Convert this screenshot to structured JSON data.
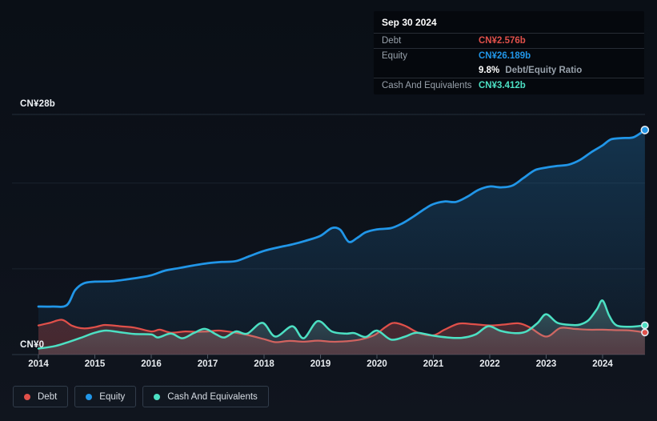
{
  "tooltip": {
    "date": "Sep 30 2024",
    "debt_label": "Debt",
    "debt_value": "CN¥2.576b",
    "equity_label": "Equity",
    "equity_value": "CN¥26.189b",
    "ratio_value": "9.8%",
    "ratio_label": "Debt/Equity Ratio",
    "cash_label": "Cash And Equivalents",
    "cash_value": "CN¥3.412b"
  },
  "legend": {
    "items": [
      {
        "key": "debt",
        "label": "Debt"
      },
      {
        "key": "equity",
        "label": "Equity"
      },
      {
        "key": "cash",
        "label": "Cash And Equivalents"
      }
    ]
  },
  "colors": {
    "debt": "#e0504a",
    "equity": "#2196e8",
    "cash": "#4ce0c3",
    "equity_fill_top": "rgba(38,132,199,0.30)",
    "equity_fill_bottom": "rgba(38,132,199,0.05)",
    "debt_fill": "rgba(224,80,74,0.26)",
    "cash_fill_top": "rgba(125,222,204,0.30)",
    "cash_fill_bottom": "rgba(150,168,184,0.15)",
    "marker_stroke": "#e2ebf3",
    "grid_major": "#232d39",
    "grid_minor": "#1a222d",
    "axis_line": "#2e3845",
    "tick": "#4c5663"
  },
  "chart_data": {
    "type": "area",
    "unit": "CN¥ billions",
    "last_point_date": "Sep 30 2024",
    "y_axis": {
      "min": 0,
      "max": 28,
      "top_label": "CN¥28b",
      "bottom_label": "CN¥0",
      "gridlines": [
        28,
        20,
        10,
        0
      ]
    },
    "x_axis": {
      "ticks": [
        "2014",
        "2015",
        "2016",
        "2017",
        "2018",
        "2019",
        "2020",
        "2021",
        "2022",
        "2023",
        "2024"
      ]
    },
    "series": [
      {
        "key": "equity",
        "name": "Equity",
        "points": [
          [
            2014.0,
            5.6
          ],
          [
            2014.25,
            5.6
          ],
          [
            2014.5,
            5.75
          ],
          [
            2014.65,
            7.5
          ],
          [
            2014.8,
            8.3
          ],
          [
            2015.0,
            8.5
          ],
          [
            2015.3,
            8.55
          ],
          [
            2015.6,
            8.8
          ],
          [
            2015.8,
            9.0
          ],
          [
            2016.0,
            9.25
          ],
          [
            2016.25,
            9.8
          ],
          [
            2016.5,
            10.1
          ],
          [
            2016.75,
            10.4
          ],
          [
            2017.0,
            10.65
          ],
          [
            2017.25,
            10.8
          ],
          [
            2017.5,
            10.9
          ],
          [
            2017.75,
            11.5
          ],
          [
            2018.0,
            12.1
          ],
          [
            2018.25,
            12.5
          ],
          [
            2018.5,
            12.85
          ],
          [
            2018.75,
            13.3
          ],
          [
            2019.0,
            13.85
          ],
          [
            2019.2,
            14.75
          ],
          [
            2019.35,
            14.55
          ],
          [
            2019.5,
            13.15
          ],
          [
            2019.65,
            13.6
          ],
          [
            2019.8,
            14.25
          ],
          [
            2020.0,
            14.6
          ],
          [
            2020.25,
            14.75
          ],
          [
            2020.45,
            15.3
          ],
          [
            2020.65,
            16.1
          ],
          [
            2020.85,
            17.0
          ],
          [
            2021.0,
            17.55
          ],
          [
            2021.2,
            17.85
          ],
          [
            2021.4,
            17.8
          ],
          [
            2021.6,
            18.4
          ],
          [
            2021.8,
            19.2
          ],
          [
            2022.0,
            19.6
          ],
          [
            2022.2,
            19.5
          ],
          [
            2022.4,
            19.7
          ],
          [
            2022.6,
            20.6
          ],
          [
            2022.8,
            21.5
          ],
          [
            2023.0,
            21.8
          ],
          [
            2023.2,
            22.0
          ],
          [
            2023.4,
            22.15
          ],
          [
            2023.6,
            22.7
          ],
          [
            2023.8,
            23.6
          ],
          [
            2024.0,
            24.4
          ],
          [
            2024.15,
            25.1
          ],
          [
            2024.35,
            25.25
          ],
          [
            2024.55,
            25.35
          ],
          [
            2024.75,
            26.189
          ]
        ]
      },
      {
        "key": "debt",
        "name": "Debt",
        "points": [
          [
            2014.0,
            3.4
          ],
          [
            2014.2,
            3.7
          ],
          [
            2014.42,
            4.05
          ],
          [
            2014.6,
            3.35
          ],
          [
            2014.8,
            3.05
          ],
          [
            2015.0,
            3.2
          ],
          [
            2015.18,
            3.45
          ],
          [
            2015.45,
            3.3
          ],
          [
            2015.7,
            3.15
          ],
          [
            2016.0,
            2.7
          ],
          [
            2016.15,
            2.9
          ],
          [
            2016.35,
            2.55
          ],
          [
            2016.6,
            2.7
          ],
          [
            2016.8,
            2.65
          ],
          [
            2017.0,
            2.7
          ],
          [
            2017.2,
            2.8
          ],
          [
            2017.45,
            2.6
          ],
          [
            2017.7,
            2.3
          ],
          [
            2018.0,
            1.8
          ],
          [
            2018.2,
            1.45
          ],
          [
            2018.45,
            1.6
          ],
          [
            2018.7,
            1.5
          ],
          [
            2018.95,
            1.62
          ],
          [
            2019.2,
            1.5
          ],
          [
            2019.45,
            1.55
          ],
          [
            2019.7,
            1.75
          ],
          [
            2019.95,
            2.25
          ],
          [
            2020.15,
            3.2
          ],
          [
            2020.3,
            3.7
          ],
          [
            2020.5,
            3.35
          ],
          [
            2020.75,
            2.5
          ],
          [
            2021.0,
            2.25
          ],
          [
            2021.2,
            2.9
          ],
          [
            2021.45,
            3.6
          ],
          [
            2021.7,
            3.55
          ],
          [
            2022.0,
            3.4
          ],
          [
            2022.25,
            3.5
          ],
          [
            2022.5,
            3.65
          ],
          [
            2022.7,
            3.2
          ],
          [
            2023.0,
            2.1
          ],
          [
            2023.25,
            3.1
          ],
          [
            2023.5,
            3.0
          ],
          [
            2023.75,
            2.9
          ],
          [
            2024.0,
            2.9
          ],
          [
            2024.25,
            2.85
          ],
          [
            2024.5,
            2.8
          ],
          [
            2024.75,
            2.576
          ]
        ]
      },
      {
        "key": "cash",
        "name": "Cash And Equivalents",
        "points": [
          [
            2014.0,
            0.7
          ],
          [
            2014.3,
            1.0
          ],
          [
            2014.55,
            1.5
          ],
          [
            2014.75,
            1.95
          ],
          [
            2015.0,
            2.55
          ],
          [
            2015.2,
            2.8
          ],
          [
            2015.45,
            2.6
          ],
          [
            2015.7,
            2.4
          ],
          [
            2016.0,
            2.35
          ],
          [
            2016.12,
            2.0
          ],
          [
            2016.35,
            2.45
          ],
          [
            2016.55,
            1.9
          ],
          [
            2016.75,
            2.5
          ],
          [
            2016.95,
            3.0
          ],
          [
            2017.15,
            2.35
          ],
          [
            2017.3,
            2.0
          ],
          [
            2017.5,
            2.7
          ],
          [
            2017.7,
            2.45
          ],
          [
            2017.97,
            3.7
          ],
          [
            2018.2,
            2.1
          ],
          [
            2018.5,
            3.3
          ],
          [
            2018.7,
            1.9
          ],
          [
            2018.95,
            3.9
          ],
          [
            2019.2,
            2.7
          ],
          [
            2019.45,
            2.45
          ],
          [
            2019.6,
            2.5
          ],
          [
            2019.8,
            2.05
          ],
          [
            2020.0,
            2.8
          ],
          [
            2020.25,
            1.75
          ],
          [
            2020.5,
            2.1
          ],
          [
            2020.7,
            2.55
          ],
          [
            2021.0,
            2.2
          ],
          [
            2021.25,
            2.0
          ],
          [
            2021.5,
            1.95
          ],
          [
            2021.75,
            2.35
          ],
          [
            2021.97,
            3.3
          ],
          [
            2022.2,
            2.75
          ],
          [
            2022.45,
            2.5
          ],
          [
            2022.65,
            2.7
          ],
          [
            2022.85,
            3.7
          ],
          [
            2023.0,
            4.7
          ],
          [
            2023.2,
            3.7
          ],
          [
            2023.45,
            3.45
          ],
          [
            2023.6,
            3.5
          ],
          [
            2023.75,
            4.0
          ],
          [
            2023.9,
            5.3
          ],
          [
            2024.0,
            6.3
          ],
          [
            2024.12,
            4.5
          ],
          [
            2024.25,
            3.4
          ],
          [
            2024.5,
            3.25
          ],
          [
            2024.75,
            3.412
          ]
        ]
      }
    ]
  }
}
